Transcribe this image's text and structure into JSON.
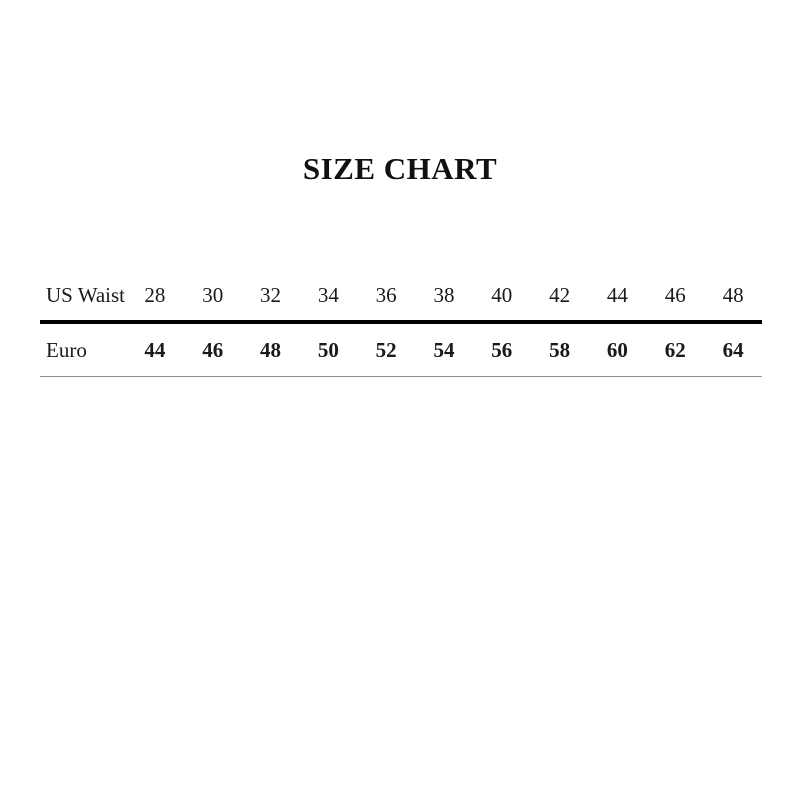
{
  "chart_data": {
    "type": "table",
    "title": "SIZE CHART",
    "rows": [
      {
        "label": "US Waist",
        "style": "regular",
        "values": [
          "28",
          "30",
          "32",
          "34",
          "36",
          "38",
          "40",
          "42",
          "44",
          "46",
          "48"
        ]
      },
      {
        "label": "Euro",
        "style": "bold",
        "values": [
          "44",
          "46",
          "48",
          "50",
          "52",
          "54",
          "56",
          "58",
          "60",
          "62",
          "64"
        ]
      }
    ],
    "layout": {
      "title_position": "top-center",
      "divider_after_header": "thick-black",
      "divider_after_body": "thin-gray"
    },
    "colors": {
      "background": "#ffffff",
      "text": "#111111",
      "thick_rule": "#000000",
      "thin_rule": "#909090"
    }
  }
}
